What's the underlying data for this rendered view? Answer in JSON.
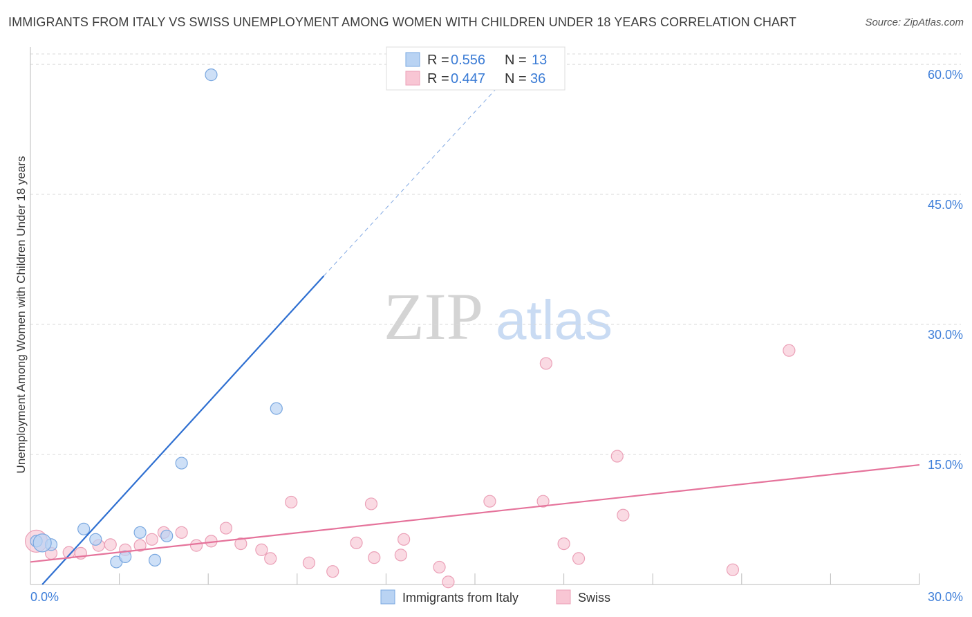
{
  "title": "IMMIGRANTS FROM ITALY VS SWISS UNEMPLOYMENT AMONG WOMEN WITH CHILDREN UNDER 18 YEARS CORRELATION CHART",
  "source": "Source: ZipAtlas.com",
  "watermark": {
    "zip": "ZIP",
    "atlas": "atlas"
  },
  "colors": {
    "italy_fill": "#b9d3f3",
    "italy_stroke": "#7aa8e0",
    "italy_line": "#2e6fd1",
    "swiss_fill": "#f8c6d4",
    "swiss_stroke": "#eba0b7",
    "swiss_line": "#e5739b",
    "axis_label": "#3f7fd9",
    "grid": "#d8d8d8"
  },
  "legend_top": [
    {
      "r_label": "R = ",
      "r_value": "0.556",
      "n_label": "N = ",
      "n_value": "13"
    },
    {
      "r_label": "R = ",
      "r_value": "0.447",
      "n_label": "N = ",
      "n_value": "36"
    }
  ],
  "chart_data": {
    "type": "scatter",
    "title": "IMMIGRANTS FROM ITALY VS SWISS UNEMPLOYMENT AMONG WOMEN WITH CHILDREN UNDER 18 YEARS CORRELATION CHART",
    "xlabel": "",
    "ylabel": "Unemployment Among Women with Children Under 18 years",
    "xlim": [
      0,
      30
    ],
    "ylim": [
      0,
      62
    ],
    "x_tick_labels": [
      "0.0%",
      "30.0%"
    ],
    "y_ticks": [
      15,
      30,
      45,
      60
    ],
    "y_tick_labels": [
      "15.0%",
      "30.0%",
      "45.0%",
      "60.0%"
    ],
    "grid": true,
    "legend_position": "top-center",
    "series": [
      {
        "name": "Immigrants from Italy",
        "points": [
          [
            0.2,
            5.0
          ],
          [
            0.7,
            4.6
          ],
          [
            1.8,
            6.4
          ],
          [
            2.2,
            5.2
          ],
          [
            2.9,
            2.6
          ],
          [
            3.2,
            3.2
          ],
          [
            3.7,
            6.0
          ],
          [
            4.2,
            2.8
          ],
          [
            4.6,
            5.6
          ],
          [
            5.1,
            14.0
          ],
          [
            6.1,
            58.8
          ],
          [
            8.3,
            20.3
          ],
          [
            0.4,
            4.8
          ]
        ],
        "trend": {
          "x0": 0.4,
          "y0": 0.0,
          "x1": 9.9,
          "y1": 35.6,
          "dashed_to": [
            15.8,
            57.5
          ]
        }
      },
      {
        "name": "Swiss",
        "points": [
          [
            0.2,
            5.0
          ],
          [
            0.7,
            3.6
          ],
          [
            1.3,
            3.7
          ],
          [
            1.7,
            3.6
          ],
          [
            2.3,
            4.5
          ],
          [
            2.7,
            4.6
          ],
          [
            3.2,
            4.0
          ],
          [
            3.7,
            4.5
          ],
          [
            4.1,
            5.2
          ],
          [
            4.5,
            6.0
          ],
          [
            5.1,
            6.0
          ],
          [
            5.6,
            4.5
          ],
          [
            6.1,
            5.0
          ],
          [
            6.6,
            6.5
          ],
          [
            7.1,
            4.7
          ],
          [
            7.8,
            4.0
          ],
          [
            8.1,
            3.0
          ],
          [
            8.8,
            9.5
          ],
          [
            9.4,
            2.5
          ],
          [
            10.2,
            1.5
          ],
          [
            11.0,
            4.8
          ],
          [
            11.5,
            9.3
          ],
          [
            11.6,
            3.1
          ],
          [
            12.5,
            3.4
          ],
          [
            12.6,
            5.2
          ],
          [
            13.8,
            2.0
          ],
          [
            14.1,
            0.3
          ],
          [
            15.5,
            9.6
          ],
          [
            17.3,
            9.6
          ],
          [
            17.4,
            25.5
          ],
          [
            18.0,
            4.7
          ],
          [
            18.5,
            3.0
          ],
          [
            19.8,
            14.8
          ],
          [
            20.0,
            8.0
          ],
          [
            23.7,
            1.7
          ],
          [
            25.6,
            27.0
          ]
        ],
        "trend": {
          "x0": 0.0,
          "y0": 2.6,
          "x1": 30.0,
          "y1": 13.8
        }
      }
    ]
  },
  "bottom_legend": [
    {
      "label": "Immigrants from Italy"
    },
    {
      "label": "Swiss"
    }
  ]
}
